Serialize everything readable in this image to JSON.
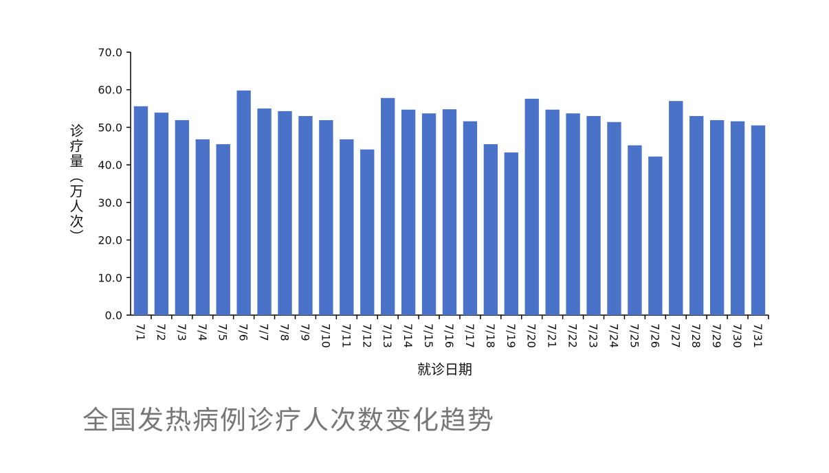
{
  "chart_data": {
    "type": "bar",
    "title": "全国发热病例诊疗人次数变化趋势",
    "x_label": "就诊日期",
    "y_label": "诊疗量（万人次）",
    "categories": [
      "7/1",
      "7/2",
      "7/3",
      "7/4",
      "7/5",
      "7/6",
      "7/7",
      "7/8",
      "7/9",
      "7/10",
      "7/11",
      "7/12",
      "7/13",
      "7/14",
      "7/15",
      "7/16",
      "7/17",
      "7/18",
      "7/19",
      "7/20",
      "7/21",
      "7/22",
      "7/23",
      "7/24",
      "7/25",
      "7/26",
      "7/27",
      "7/28",
      "7/29",
      "7/30",
      "7/31"
    ],
    "values": [
      55.6,
      53.9,
      51.9,
      46.8,
      45.5,
      59.8,
      55.0,
      54.3,
      53.0,
      51.9,
      46.8,
      44.1,
      57.8,
      54.7,
      53.7,
      54.8,
      51.6,
      45.5,
      43.3,
      57.6,
      54.7,
      53.7,
      53.0,
      51.4,
      45.2,
      42.2,
      57.0,
      53.0,
      51.9,
      51.6,
      50.5
    ],
    "color": "#4a72c8",
    "ylim": [
      0,
      70
    ],
    "yticks": [
      {
        "value": 0,
        "label": "0.0"
      },
      {
        "value": 10,
        "label": "10.0"
      },
      {
        "value": 20,
        "label": "20.0"
      },
      {
        "value": 30,
        "label": "30.0"
      },
      {
        "value": 40,
        "label": "40.0"
      },
      {
        "value": 50,
        "label": "50.0"
      },
      {
        "value": 60,
        "label": "60.0"
      },
      {
        "value": 70,
        "label": "70.0"
      }
    ]
  }
}
